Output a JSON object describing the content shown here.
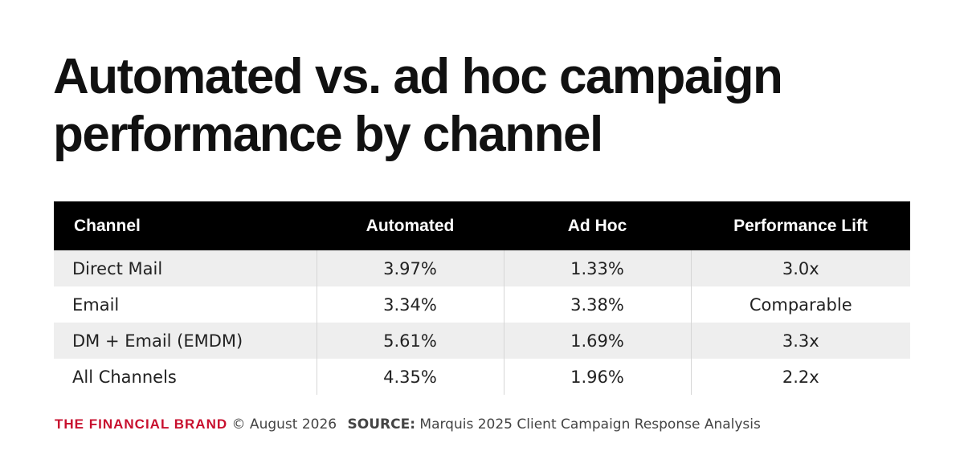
{
  "chart_data": {
    "type": "table",
    "title": "Automated vs. ad hoc campaign performance by channel",
    "columns": [
      "Channel",
      "Automated",
      "Ad Hoc",
      "Performance Lift"
    ],
    "rows": [
      [
        "Direct Mail",
        "3.97%",
        "1.33%",
        "3.0x"
      ],
      [
        "Email",
        "3.34%",
        "3.38%",
        "Comparable"
      ],
      [
        "DM + Email (EMDM)",
        "5.61%",
        "1.69%",
        "3.3x"
      ],
      [
        "All Channels",
        "4.35%",
        "1.96%",
        "2.2x"
      ]
    ]
  },
  "footer": {
    "brand": "THE FINANCIAL BRAND",
    "copyright": "© August 2026",
    "source_label": "SOURCE:",
    "source_text": "Marquis 2025 Client Campaign Response Analysis"
  },
  "colors": {
    "brand_red": "#c8102e",
    "header_bg": "#000000",
    "row_alt_bg": "#eeeeee"
  }
}
